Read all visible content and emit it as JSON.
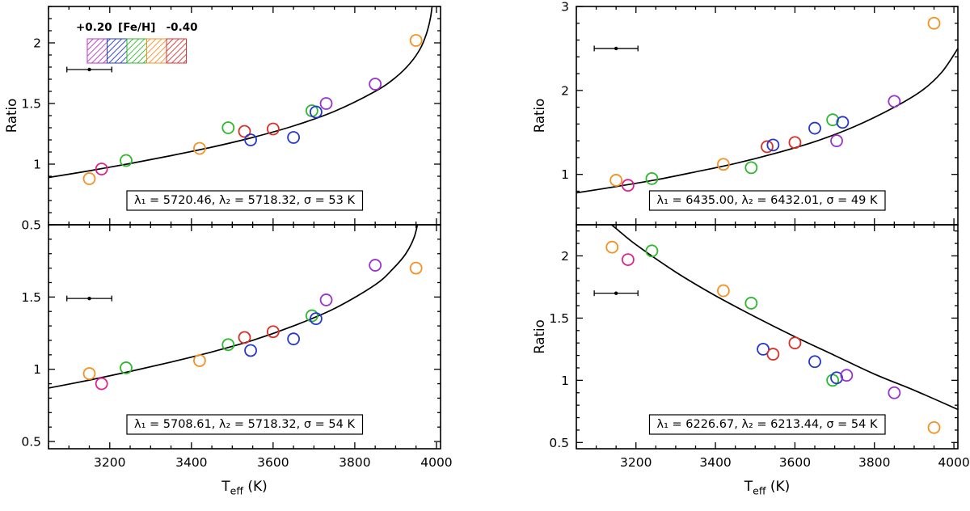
{
  "figure": {
    "background": "#ffffff",
    "y_axis_label": "Ratio",
    "x_axis_label": {
      "main": "T",
      "sub": "eff",
      "rest": " (K)"
    },
    "xlim": [
      3050,
      4010
    ],
    "x_ticks": [
      3200,
      3400,
      3600,
      3800,
      4000
    ],
    "x_minor_step": 50
  },
  "legend": {
    "left_label": "+0.20",
    "center_label": "[Fe/H]",
    "right_label": "-0.40",
    "swatch_colors": [
      "#bb33cc",
      "#2438cf",
      "#2eb82e",
      "#f59123",
      "#e03131"
    ]
  },
  "point_colors": {
    "orange": "#f59123",
    "magenta": "#e0218a",
    "green": "#2eb82e",
    "red": "#d93025",
    "blue": "#2438cf",
    "purple": "#9933cc"
  },
  "chart_data": [
    {
      "id": "top-left",
      "type": "scatter",
      "annotation": "λ₁ = 5720.46, λ₂ = 5718.32, σ = 53 K",
      "ylim": [
        0.5,
        2.3
      ],
      "y_ticks": [
        0.5,
        1,
        1.5,
        2
      ],
      "y_minor_step": 0.1,
      "show_x_tick_labels": false,
      "show_y_axis_label": true,
      "has_legend": true,
      "error_bar": {
        "x": 3150,
        "y": 1.78,
        "half_width": 55
      },
      "curve": [
        [
          3050,
          0.89
        ],
        [
          3150,
          0.945
        ],
        [
          3250,
          1.005
        ],
        [
          3350,
          1.07
        ],
        [
          3450,
          1.14
        ],
        [
          3550,
          1.22
        ],
        [
          3650,
          1.315
        ],
        [
          3750,
          1.435
        ],
        [
          3850,
          1.6
        ],
        [
          3900,
          1.715
        ],
        [
          3935,
          1.83
        ],
        [
          3960,
          1.95
        ],
        [
          3975,
          2.07
        ],
        [
          3985,
          2.2
        ],
        [
          3990,
          2.32
        ]
      ],
      "points": [
        [
          3150,
          0.88,
          "orange"
        ],
        [
          3180,
          0.96,
          "magenta"
        ],
        [
          3240,
          1.03,
          "green"
        ],
        [
          3420,
          1.13,
          "orange"
        ],
        [
          3490,
          1.3,
          "green"
        ],
        [
          3530,
          1.27,
          "red"
        ],
        [
          3545,
          1.2,
          "blue"
        ],
        [
          3600,
          1.29,
          "red"
        ],
        [
          3650,
          1.22,
          "blue"
        ],
        [
          3695,
          1.44,
          "green"
        ],
        [
          3705,
          1.43,
          "blue"
        ],
        [
          3730,
          1.5,
          "purple"
        ],
        [
          3850,
          1.66,
          "purple"
        ],
        [
          3950,
          2.02,
          "orange"
        ]
      ]
    },
    {
      "id": "bottom-left",
      "type": "scatter",
      "annotation": "λ₁ = 5708.61, λ₂ = 5718.32, σ = 54 K",
      "ylim": [
        0.45,
        2.0
      ],
      "y_ticks": [
        0.5,
        1,
        1.5
      ],
      "y_minor_step": 0.1,
      "show_x_tick_labels": true,
      "show_y_axis_label": false,
      "has_legend": false,
      "error_bar": {
        "x": 3150,
        "y": 1.49,
        "half_width": 55
      },
      "curve": [
        [
          3050,
          0.87
        ],
        [
          3150,
          0.925
        ],
        [
          3250,
          0.985
        ],
        [
          3350,
          1.05
        ],
        [
          3450,
          1.12
        ],
        [
          3550,
          1.2
        ],
        [
          3650,
          1.3
        ],
        [
          3750,
          1.42
        ],
        [
          3850,
          1.585
        ],
        [
          3895,
          1.7
        ],
        [
          3925,
          1.8
        ],
        [
          3945,
          1.91
        ],
        [
          3955,
          2.02
        ]
      ],
      "points": [
        [
          3150,
          0.97,
          "orange"
        ],
        [
          3180,
          0.9,
          "magenta"
        ],
        [
          3240,
          1.01,
          "green"
        ],
        [
          3420,
          1.06,
          "orange"
        ],
        [
          3490,
          1.17,
          "green"
        ],
        [
          3530,
          1.22,
          "red"
        ],
        [
          3545,
          1.13,
          "blue"
        ],
        [
          3600,
          1.26,
          "red"
        ],
        [
          3650,
          1.21,
          "blue"
        ],
        [
          3695,
          1.37,
          "green"
        ],
        [
          3705,
          1.35,
          "blue"
        ],
        [
          3730,
          1.48,
          "purple"
        ],
        [
          3850,
          1.72,
          "purple"
        ],
        [
          3950,
          1.7,
          "orange"
        ]
      ]
    },
    {
      "id": "top-right",
      "type": "scatter",
      "annotation": "λ₁ = 6435.00, λ₂ = 6432.01, σ = 49 K",
      "ylim": [
        0.4,
        3.0
      ],
      "y_ticks": [
        1,
        2,
        3
      ],
      "y_minor_step": 0.2,
      "show_x_tick_labels": false,
      "show_y_axis_label": true,
      "has_legend": false,
      "error_bar": {
        "x": 3150,
        "y": 2.5,
        "half_width": 55
      },
      "curve": [
        [
          3050,
          0.78
        ],
        [
          3150,
          0.855
        ],
        [
          3250,
          0.935
        ],
        [
          3350,
          1.03
        ],
        [
          3450,
          1.13
        ],
        [
          3550,
          1.25
        ],
        [
          3650,
          1.39
        ],
        [
          3750,
          1.57
        ],
        [
          3850,
          1.8
        ],
        [
          3920,
          2.0
        ],
        [
          3970,
          2.22
        ],
        [
          4010,
          2.5
        ]
      ],
      "points": [
        [
          3150,
          0.93,
          "orange"
        ],
        [
          3180,
          0.87,
          "magenta"
        ],
        [
          3240,
          0.95,
          "green"
        ],
        [
          3420,
          1.12,
          "orange"
        ],
        [
          3490,
          1.08,
          "green"
        ],
        [
          3530,
          1.33,
          "red"
        ],
        [
          3545,
          1.35,
          "blue"
        ],
        [
          3600,
          1.38,
          "red"
        ],
        [
          3650,
          1.55,
          "blue"
        ],
        [
          3695,
          1.65,
          "green"
        ],
        [
          3720,
          1.62,
          "blue"
        ],
        [
          3705,
          1.4,
          "purple"
        ],
        [
          3850,
          1.87,
          "purple"
        ],
        [
          3950,
          2.8,
          "orange"
        ]
      ]
    },
    {
      "id": "bottom-right",
      "type": "scatter",
      "annotation": "λ₁ = 6226.67, λ₂ = 6213.44, σ = 54 K",
      "ylim": [
        0.45,
        2.25
      ],
      "y_ticks": [
        0.5,
        1,
        1.5,
        2
      ],
      "y_minor_step": 0.1,
      "show_x_tick_labels": true,
      "show_y_axis_label": true,
      "has_legend": false,
      "error_bar": {
        "x": 3150,
        "y": 1.7,
        "half_width": 55
      },
      "curve": [
        [
          3100,
          2.35
        ],
        [
          3150,
          2.22
        ],
        [
          3200,
          2.09
        ],
        [
          3300,
          1.87
        ],
        [
          3400,
          1.68
        ],
        [
          3500,
          1.51
        ],
        [
          3600,
          1.35
        ],
        [
          3700,
          1.2
        ],
        [
          3800,
          1.05
        ],
        [
          3900,
          0.92
        ],
        [
          4000,
          0.78
        ],
        [
          4010,
          0.765
        ]
      ],
      "points": [
        [
          3140,
          2.07,
          "orange"
        ],
        [
          3180,
          1.97,
          "magenta"
        ],
        [
          3240,
          2.04,
          "green"
        ],
        [
          3420,
          1.72,
          "orange"
        ],
        [
          3490,
          1.62,
          "green"
        ],
        [
          3520,
          1.25,
          "blue"
        ],
        [
          3545,
          1.21,
          "red"
        ],
        [
          3600,
          1.3,
          "red"
        ],
        [
          3650,
          1.15,
          "blue"
        ],
        [
          3695,
          1.0,
          "green"
        ],
        [
          3705,
          1.02,
          "blue"
        ],
        [
          3730,
          1.04,
          "purple"
        ],
        [
          3850,
          0.9,
          "purple"
        ],
        [
          3950,
          0.62,
          "orange"
        ]
      ]
    }
  ]
}
